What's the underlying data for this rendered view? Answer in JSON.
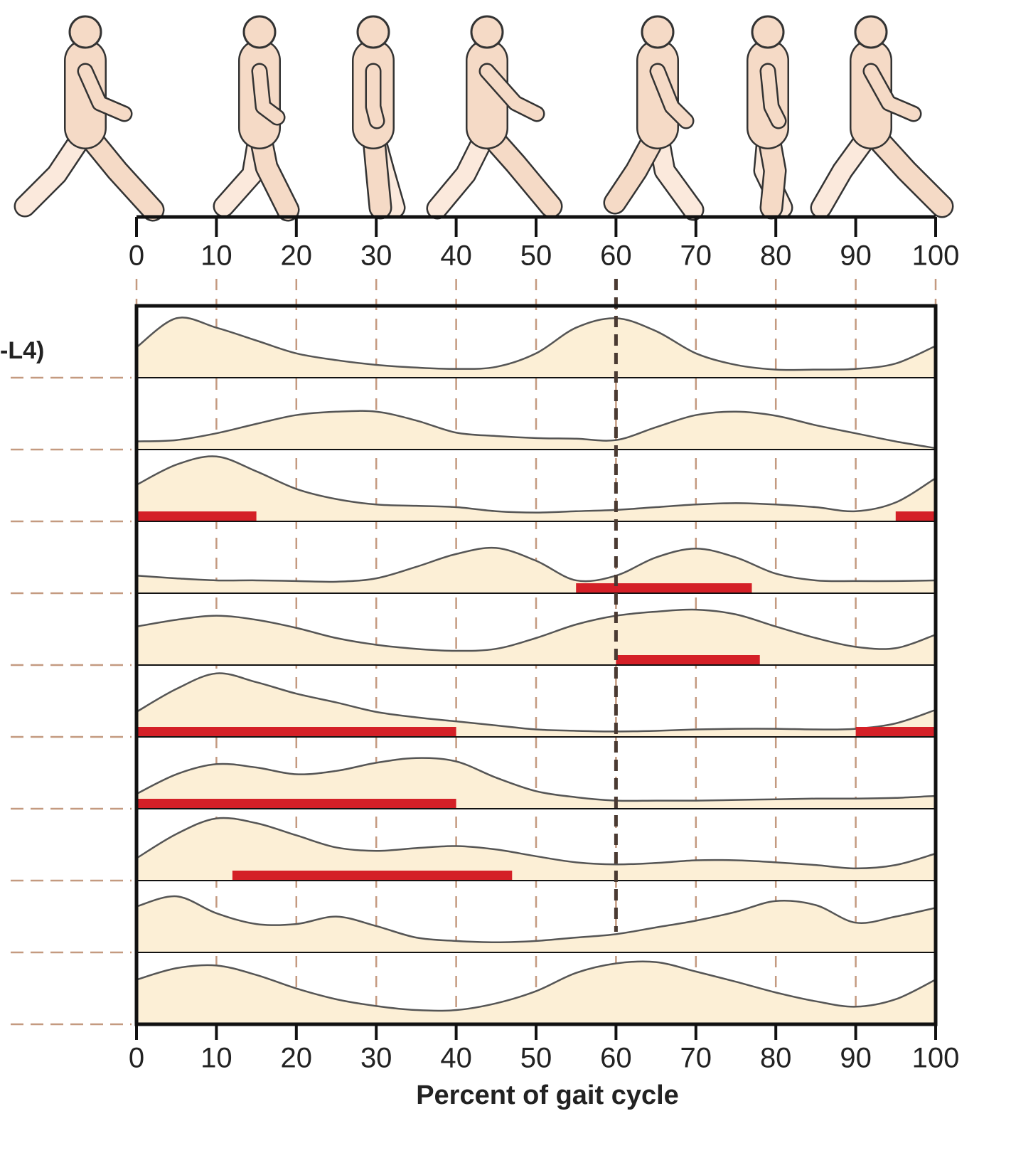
{
  "chart_data": {
    "type": "area",
    "row_label": "-L4)",
    "xlabel": "Percent of gait cycle",
    "xlim": [
      0,
      100
    ],
    "xticks": [
      0,
      10,
      20,
      30,
      40,
      50,
      60,
      70,
      80,
      90,
      100
    ],
    "highlight_x": 60,
    "ylim": [
      0,
      1
    ],
    "fill_color": "#fcefd6",
    "line_color": "#555555",
    "span_color": "#d42027",
    "x": [
      0,
      5,
      10,
      15,
      20,
      25,
      30,
      35,
      40,
      45,
      50,
      55,
      60,
      65,
      70,
      75,
      80,
      85,
      90,
      95,
      100
    ],
    "series": [
      {
        "values": [
          0.45,
          0.88,
          0.74,
          0.55,
          0.36,
          0.26,
          0.19,
          0.15,
          0.13,
          0.16,
          0.36,
          0.74,
          0.88,
          0.69,
          0.36,
          0.19,
          0.12,
          0.12,
          0.13,
          0.21,
          0.47
        ],
        "spans": []
      },
      {
        "values": [
          0.12,
          0.14,
          0.24,
          0.38,
          0.51,
          0.56,
          0.56,
          0.43,
          0.25,
          0.2,
          0.17,
          0.16,
          0.14,
          0.33,
          0.51,
          0.56,
          0.5,
          0.36,
          0.24,
          0.12,
          0.02
        ],
        "spans": []
      },
      {
        "values": [
          0.54,
          0.84,
          0.96,
          0.74,
          0.48,
          0.33,
          0.25,
          0.23,
          0.21,
          0.15,
          0.13,
          0.15,
          0.17,
          0.21,
          0.25,
          0.27,
          0.25,
          0.21,
          0.15,
          0.28,
          0.64
        ],
        "spans": [
          [
            0,
            15
          ],
          [
            95,
            100
          ]
        ]
      },
      {
        "values": [
          0.26,
          0.22,
          0.19,
          0.19,
          0.18,
          0.17,
          0.22,
          0.39,
          0.58,
          0.67,
          0.48,
          0.19,
          0.26,
          0.53,
          0.66,
          0.53,
          0.29,
          0.19,
          0.18,
          0.18,
          0.19
        ],
        "spans": [
          [
            55,
            77
          ]
        ]
      },
      {
        "values": [
          0.57,
          0.67,
          0.73,
          0.67,
          0.55,
          0.4,
          0.3,
          0.24,
          0.21,
          0.24,
          0.4,
          0.6,
          0.73,
          0.79,
          0.82,
          0.75,
          0.57,
          0.4,
          0.27,
          0.25,
          0.45
        ],
        "spans": [
          [
            60,
            78
          ]
        ]
      },
      {
        "values": [
          0.37,
          0.71,
          0.94,
          0.81,
          0.64,
          0.51,
          0.37,
          0.29,
          0.23,
          0.17,
          0.11,
          0.09,
          0.08,
          0.09,
          0.11,
          0.12,
          0.12,
          0.11,
          0.12,
          0.2,
          0.4
        ],
        "spans": [
          [
            0,
            40
          ],
          [
            90,
            100
          ]
        ]
      },
      {
        "values": [
          0.22,
          0.51,
          0.66,
          0.61,
          0.51,
          0.56,
          0.68,
          0.75,
          0.7,
          0.46,
          0.26,
          0.17,
          0.12,
          0.12,
          0.12,
          0.13,
          0.14,
          0.15,
          0.15,
          0.16,
          0.19
        ],
        "spans": [
          [
            0,
            40
          ]
        ]
      },
      {
        "values": [
          0.33,
          0.69,
          0.92,
          0.85,
          0.67,
          0.49,
          0.44,
          0.48,
          0.51,
          0.46,
          0.36,
          0.27,
          0.24,
          0.26,
          0.3,
          0.3,
          0.27,
          0.23,
          0.18,
          0.23,
          0.4
        ],
        "spans": [
          [
            12,
            47
          ]
        ]
      },
      {
        "values": [
          0.68,
          0.83,
          0.58,
          0.42,
          0.42,
          0.53,
          0.39,
          0.22,
          0.17,
          0.15,
          0.17,
          0.22,
          0.27,
          0.37,
          0.47,
          0.6,
          0.76,
          0.7,
          0.44,
          0.53,
          0.66
        ],
        "spans": []
      },
      {
        "values": [
          0.66,
          0.83,
          0.87,
          0.73,
          0.53,
          0.37,
          0.27,
          0.21,
          0.21,
          0.31,
          0.49,
          0.76,
          0.9,
          0.92,
          0.78,
          0.63,
          0.47,
          0.34,
          0.26,
          0.37,
          0.66
        ],
        "spans": []
      }
    ]
  }
}
